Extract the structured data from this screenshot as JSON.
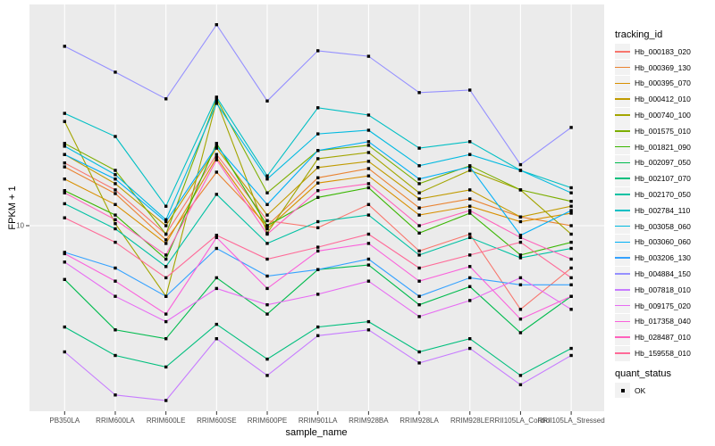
{
  "figure": {
    "kind": "ggplot2 line plot with points",
    "background": "#FFFFFF"
  },
  "chart_data": {
    "type": "line",
    "title": "",
    "xlabel": "sample_name",
    "ylabel": "FPKM + 1",
    "y_scale": "log10",
    "ylim": [
      1.62,
      87.6
    ],
    "y_major_ticks": [
      10
    ],
    "y_tick_labels": [
      "10"
    ],
    "grid": "white major gridlines on gray panel",
    "legend_position": "right",
    "point_marker": "small black square",
    "categories": [
      "PB350LA",
      "RRIM600LA",
      "RRIM600LE",
      "RRIM600SE",
      "RRIM600PE",
      "RRIM901LA",
      "RRIM928BA",
      "RRIM928LA",
      "RRIM928LE",
      "RRII105LA_Control",
      "RRII105LA_Stressed"
    ],
    "series": [
      {
        "name": "Hb_000183_020",
        "color": "#F8766D",
        "values": [
          18.5,
          14.2,
          9.2,
          20.1,
          10.5,
          9.8,
          12.3,
          7.8,
          9.2,
          4.4,
          6.6
        ]
      },
      {
        "name": "Hb_000369_130",
        "color": "#EA8331",
        "values": [
          17.8,
          13.7,
          8.7,
          16.9,
          10.0,
          16.0,
          17.5,
          11.9,
          13.0,
          10.9,
          10.0
        ]
      },
      {
        "name": "Hb_000395_070",
        "color": "#D89000",
        "values": [
          15.8,
          12.3,
          8.4,
          19.5,
          9.7,
          15.2,
          16.3,
          11.1,
          12.1,
          10.4,
          11.3
        ]
      },
      {
        "name": "Hb_000412_010",
        "color": "#C09B00",
        "values": [
          20.1,
          15.1,
          10.0,
          21.4,
          11.1,
          17.7,
          18.8,
          13.0,
          14.2,
          10.9,
          12.1
        ]
      },
      {
        "name": "Hb_000740_100",
        "color": "#A3A500",
        "values": [
          27.8,
          10.2,
          5.0,
          34.0,
          9.3,
          19.3,
          20.5,
          13.8,
          17.2,
          14.2,
          9.2
        ]
      },
      {
        "name": "Hb_001575_010",
        "color": "#7CAE00",
        "values": [
          22.4,
          17.2,
          9.2,
          34.7,
          13.8,
          20.9,
          22.0,
          15.1,
          18.0,
          14.2,
          12.7
        ]
      },
      {
        "name": "Hb_001821_090",
        "color": "#39B600",
        "values": [
          14.1,
          11.1,
          7.2,
          22.4,
          10.0,
          13.2,
          14.5,
          9.3,
          11.3,
          7.5,
          8.5
        ]
      },
      {
        "name": "Hb_002097_050",
        "color": "#00BB4E",
        "values": [
          5.9,
          3.6,
          3.3,
          6.0,
          4.2,
          6.5,
          6.8,
          4.6,
          5.5,
          3.5,
          5.0
        ]
      },
      {
        "name": "Hb_002107_070",
        "color": "#00BF7D",
        "values": [
          3.7,
          2.8,
          2.5,
          3.8,
          2.7,
          3.7,
          3.9,
          2.9,
          3.3,
          2.3,
          3.0
        ]
      },
      {
        "name": "Hb_002170_050",
        "color": "#00C1A3",
        "values": [
          12.4,
          9.7,
          6.7,
          13.6,
          8.4,
          10.4,
          11.1,
          7.5,
          8.9,
          7.3,
          8.0
        ]
      },
      {
        "name": "Hb_002784_110",
        "color": "#00BFC4",
        "values": [
          30.1,
          24.0,
          12.1,
          35.3,
          16.3,
          31.8,
          29.6,
          21.4,
          22.8,
          17.2,
          14.5
        ]
      },
      {
        "name": "Hb_003058_060",
        "color": "#00BAE0",
        "values": [
          21.8,
          16.5,
          10.6,
          33.2,
          15.8,
          24.6,
          25.5,
          18.0,
          20.1,
          17.2,
          13.8
        ]
      },
      {
        "name": "Hb_003060_060",
        "color": "#00B0F6",
        "values": [
          20.1,
          15.8,
          10.4,
          21.8,
          12.3,
          20.9,
          22.8,
          15.8,
          17.8,
          9.1,
          11.6
        ]
      },
      {
        "name": "Hb_003206_130",
        "color": "#35A2FF",
        "values": [
          7.7,
          6.6,
          5.0,
          8.0,
          6.1,
          6.5,
          7.2,
          5.0,
          6.0,
          5.6,
          5.6
        ]
      },
      {
        "name": "Hb_004884_150",
        "color": "#9590FF",
        "values": [
          58.1,
          45.1,
          34.7,
          71.8,
          34.0,
          55.6,
          52.7,
          36.9,
          37.8,
          18.2,
          26.2
        ]
      },
      {
        "name": "Hb_007818_010",
        "color": "#C77CFF",
        "values": [
          2.9,
          1.9,
          1.8,
          3.3,
          2.3,
          3.4,
          3.6,
          2.6,
          3.0,
          2.1,
          2.8
        ]
      },
      {
        "name": "Hb_009175_020",
        "color": "#E76BF3",
        "values": [
          7.0,
          5.0,
          3.9,
          5.4,
          4.6,
          5.1,
          5.8,
          4.1,
          4.8,
          6.0,
          4.4
        ]
      },
      {
        "name": "Hb_017358_040",
        "color": "#FA62DB",
        "values": [
          7.6,
          5.8,
          4.2,
          8.9,
          5.4,
          7.8,
          8.4,
          5.8,
          6.7,
          4.0,
          5.0
        ]
      },
      {
        "name": "Hb_028487_010",
        "color": "#FF62BC",
        "values": [
          13.8,
          10.6,
          7.5,
          19.1,
          9.2,
          14.1,
          15.1,
          10.0,
          11.6,
          8.9,
          7.2
        ]
      },
      {
        "name": "Hb_159558_010",
        "color": "#FF6A98",
        "values": [
          10.8,
          8.5,
          6.0,
          9.1,
          7.2,
          8.1,
          9.2,
          6.6,
          7.5,
          8.5,
          6.0
        ]
      }
    ]
  },
  "legend": {
    "tracking_title": "tracking_id",
    "quant_title": "quant_status",
    "quant_items": [
      {
        "label": "OK",
        "marker": "black-square"
      }
    ]
  },
  "colors": {
    "panel_bg": "#EBEBEB",
    "gridline": "#FFFFFF",
    "legend_key_bg": "#F2F2F2",
    "tick_text": "#4D4D4D",
    "tick_mark": "#333333",
    "point": "#000000"
  }
}
